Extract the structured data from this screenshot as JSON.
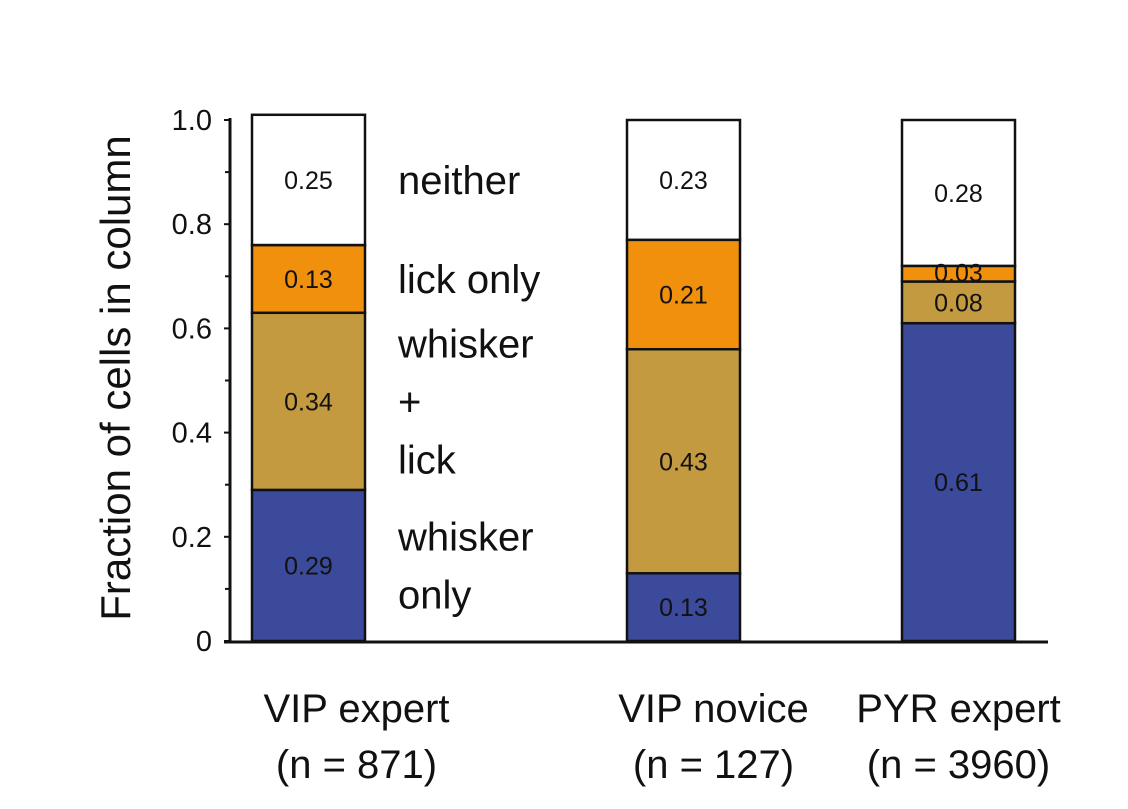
{
  "chart_data": {
    "type": "bar",
    "stacked": true,
    "ylabel": "Fraction of cells in column",
    "ylim": [
      0,
      1.0
    ],
    "y_ticks": [
      {
        "value": 0,
        "label": "0"
      },
      {
        "value": 0.2,
        "label": "0.2"
      },
      {
        "value": 0.4,
        "label": "0.4"
      },
      {
        "value": 0.6,
        "label": "0.6"
      },
      {
        "value": 0.8,
        "label": "0.8"
      },
      {
        "value": 1.0,
        "label": "1.0"
      }
    ],
    "y_minor_ticks": [
      0.1,
      0.3,
      0.5,
      0.7,
      0.9
    ],
    "categories": [
      {
        "line1": "VIP expert",
        "line2": "(n = 871)"
      },
      {
        "line1": "VIP novice",
        "line2": "(n = 127)"
      },
      {
        "line1": "PYR expert",
        "line2": "(n = 3960)"
      }
    ],
    "series": [
      {
        "key": "whisker_only",
        "color": "#3c4a9b",
        "values": [
          0.29,
          0.13,
          0.61
        ],
        "value_labels": [
          "0.29",
          "0.13",
          "0.61"
        ]
      },
      {
        "key": "whisker_lick",
        "color": "#c49a40",
        "values": [
          0.34,
          0.43,
          0.08
        ],
        "value_labels": [
          "0.34",
          "0.43",
          "0.08"
        ]
      },
      {
        "key": "lick_only",
        "color": "#f0900d",
        "values": [
          0.13,
          0.21,
          0.03
        ],
        "value_labels": [
          "0.13",
          "0.21",
          "0.03"
        ]
      },
      {
        "key": "neither",
        "color": "#ffffff",
        "values": [
          0.25,
          0.23,
          0.28
        ],
        "value_labels": [
          "0.25",
          "0.23",
          "0.28"
        ]
      }
    ],
    "legend": {
      "placement": "inline-right-of-first-bar",
      "entries": [
        {
          "series": "neither",
          "lines": [
            "neither"
          ]
        },
        {
          "series": "lick_only",
          "lines": [
            "lick only"
          ]
        },
        {
          "series": "whisker_lick",
          "lines": [
            "whisker",
            "+",
            "lick"
          ]
        },
        {
          "series": "whisker_only",
          "lines": [
            "whisker",
            "only"
          ]
        }
      ]
    },
    "grid": false
  }
}
